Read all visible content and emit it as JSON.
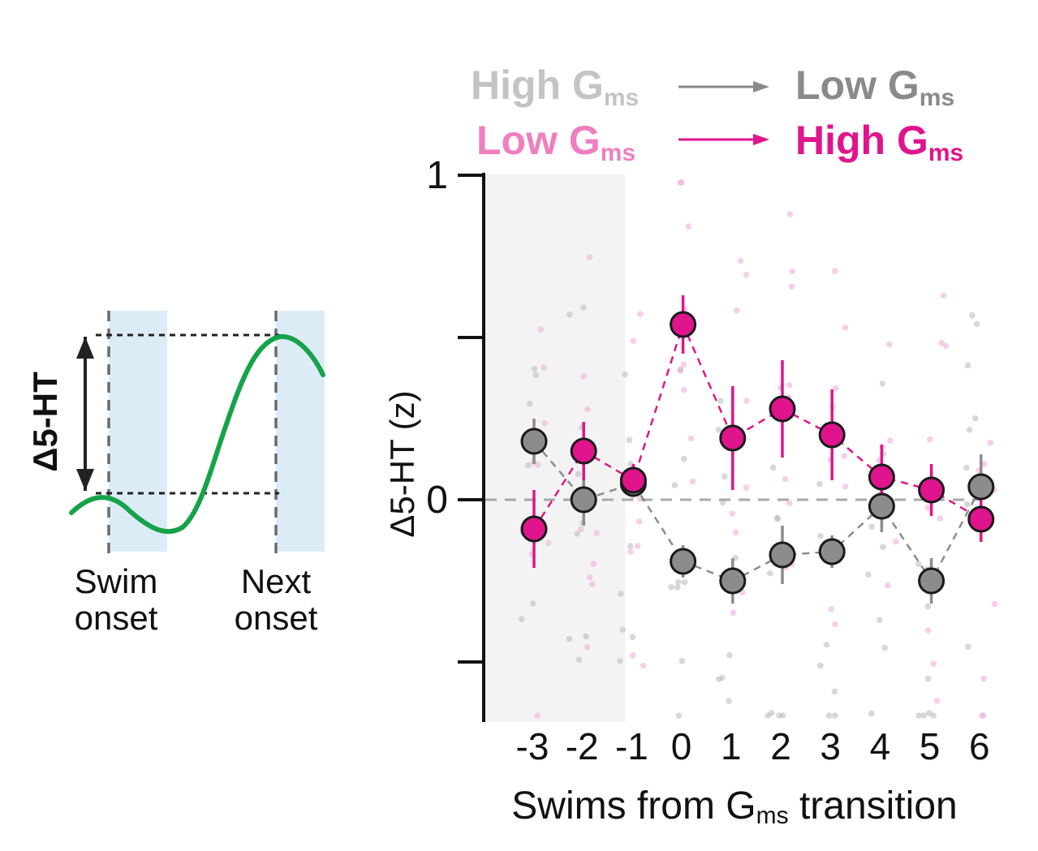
{
  "schematic": {
    "ylabel": "Δ5-HT",
    "label_left_line1": "Swim",
    "label_left_line2": "onset",
    "label_right_line1": "Next",
    "label_right_line2": "onset",
    "colors": {
      "trace": "#16a34a",
      "window": "#dcecf7",
      "dash": "#6b6b6b",
      "arrow": "#222222"
    }
  },
  "legend": {
    "row1": {
      "from_main": "High G",
      "from_sub": "ms",
      "to_main": "Low G",
      "to_sub": "ms",
      "from_color": "#c4c4c4",
      "to_color": "#8a8a8a",
      "arrow_color": "#8a8a8a"
    },
    "row2": {
      "from_main": "Low G",
      "from_sub": "ms",
      "to_main": "High G",
      "to_sub": "ms",
      "from_color": "#ef7fbe",
      "to_color": "#e0148c",
      "arrow_color": "#e0148c"
    }
  },
  "chart_data": {
    "type": "scatter",
    "title": "",
    "ylabel": "Δ5-HT (z)",
    "xlabel": "Swims  from Gms transition",
    "xlabel_parts": {
      "pre": "Swims  from G",
      "sub": "ms",
      "post": " transition"
    },
    "x": [
      -3,
      -2,
      -1,
      0,
      1,
      2,
      3,
      4,
      5,
      6
    ],
    "x_tick_labels": [
      "-3",
      "-2",
      "-1",
      "0",
      "1",
      "2",
      "3",
      "4",
      "5",
      "6"
    ],
    "y_ticks": [
      -0.5,
      0,
      0.5,
      1
    ],
    "y_tick_labels": [
      "",
      "0",
      "",
      "1"
    ],
    "ylim": [
      -0.67,
      1.0
    ],
    "shaded_x_range": [
      -3.6,
      -1.0
    ],
    "zero_line": true,
    "series": [
      {
        "name": "High Gms → Low Gms",
        "color": "#8c8c8c",
        "dot_color": "#b8b8b8",
        "values": [
          0.18,
          0.0,
          0.05,
          -0.19,
          -0.25,
          -0.17,
          -0.16,
          -0.02,
          -0.25,
          0.04
        ],
        "err": [
          0.07,
          0.08,
          0.04,
          0.05,
          0.07,
          0.09,
          0.05,
          0.08,
          0.07,
          0.1
        ]
      },
      {
        "name": "Low Gms → High Gms",
        "color": "#e0148c",
        "dot_color": "#f0a8d8",
        "values": [
          -0.09,
          0.15,
          0.06,
          0.54,
          0.19,
          0.28,
          0.2,
          0.07,
          0.03,
          -0.06
        ],
        "err": [
          0.12,
          0.09,
          0.05,
          0.09,
          0.16,
          0.15,
          0.14,
          0.1,
          0.08,
          0.07
        ]
      }
    ]
  }
}
